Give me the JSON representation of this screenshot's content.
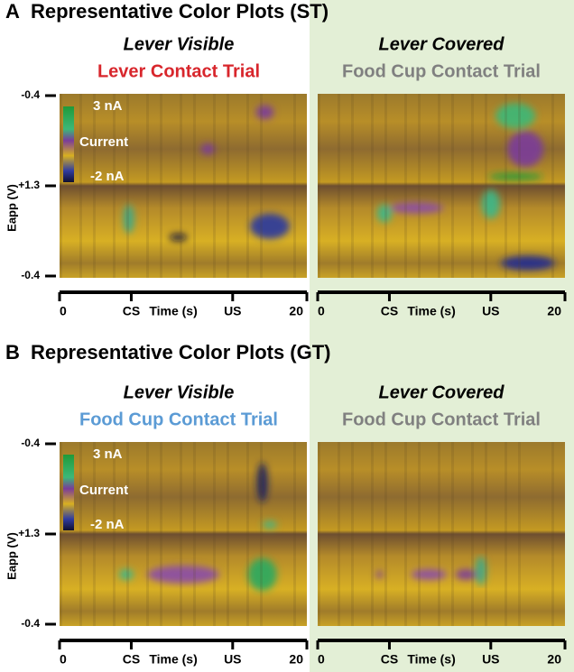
{
  "panels": [
    {
      "letter": "A",
      "title": "Representative Color Plots (ST)",
      "columns": [
        {
          "condition": "Lever Visible",
          "trial": "Lever Contact Trial",
          "color": "#d8262c"
        },
        {
          "condition": "Lever Covered",
          "trial": "Food Cup Contact Trial",
          "color": "#808080"
        }
      ]
    },
    {
      "letter": "B",
      "title": "Representative Color Plots (GT)",
      "columns": [
        {
          "condition": "Lever Visible",
          "trial": "Food Cup Contact Trial",
          "color": "#5b9bd5"
        },
        {
          "condition": "Lever Covered",
          "trial": "Food Cup Contact Trial",
          "color": "#808080"
        }
      ]
    }
  ],
  "colorbar": {
    "max": "3 nA",
    "label": "Current",
    "min": "-2 nA"
  },
  "y_axis": {
    "label": "Eapp (V)",
    "ticks": [
      "-0.4",
      "+1.3",
      "-0.4"
    ]
  },
  "x_axis": {
    "ticks": [
      "0",
      "CS",
      "Time (s)",
      "US",
      "20"
    ]
  }
}
